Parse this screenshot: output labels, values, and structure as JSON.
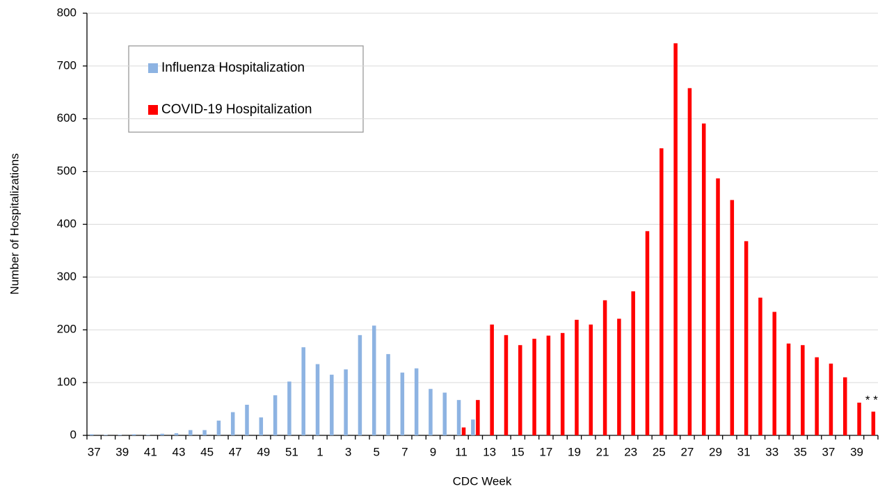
{
  "chart_data": {
    "type": "bar",
    "x_label": "CDC Week",
    "y_label": "Number of Hospitalizations",
    "annotation": "* *",
    "categories": [
      "37",
      null,
      "39",
      null,
      "41",
      null,
      "43",
      null,
      "45",
      null,
      "47",
      null,
      "49",
      null,
      "51",
      null,
      "1",
      null,
      "3",
      null,
      "5",
      null,
      "7",
      null,
      "9",
      null,
      "11",
      null,
      "13",
      null,
      "15",
      null,
      "17",
      null,
      "19",
      null,
      "21",
      null,
      "23",
      null,
      "25",
      null,
      "27",
      null,
      "29",
      null,
      "31",
      null,
      "33",
      null,
      "35",
      null,
      "37",
      null,
      "39",
      null
    ],
    "series": [
      {
        "name": "Influenza Hospitalization",
        "color": "#8db3e2",
        "values": [
          2,
          1,
          1,
          2,
          1,
          3,
          4,
          10,
          10,
          28,
          44,
          58,
          34,
          76,
          102,
          167,
          135,
          115,
          125,
          190,
          208,
          154,
          119,
          127,
          88,
          81,
          67,
          30,
          null,
          null,
          null,
          null,
          null,
          null,
          null,
          null,
          null,
          null,
          null,
          null,
          null,
          null,
          null,
          null,
          null,
          null,
          null,
          null,
          null,
          null,
          null,
          null,
          null,
          null,
          null,
          null
        ]
      },
      {
        "name": "COVID-19 Hospitalization",
        "color": "#ff0000",
        "values": [
          null,
          null,
          null,
          null,
          null,
          null,
          null,
          null,
          null,
          null,
          null,
          null,
          null,
          null,
          null,
          null,
          null,
          null,
          null,
          null,
          null,
          null,
          null,
          null,
          null,
          null,
          15,
          67,
          210,
          190,
          171,
          183,
          189,
          194,
          219,
          210,
          256,
          221,
          273,
          387,
          544,
          743,
          658,
          591,
          487,
          446,
          368,
          261,
          234,
          174,
          171,
          148,
          136,
          110,
          62,
          45
        ]
      }
    ],
    "ylim": [
      0,
      800
    ],
    "yticks": [
      0,
      100,
      200,
      300,
      400,
      500,
      600,
      700,
      800
    ],
    "grid": true
  }
}
